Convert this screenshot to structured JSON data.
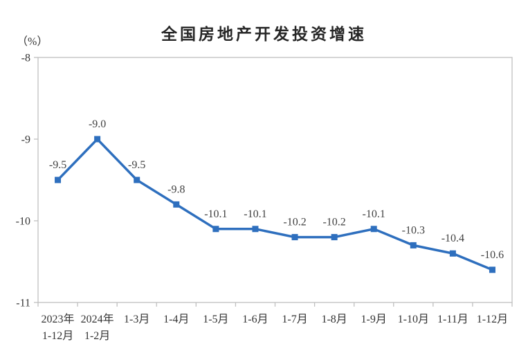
{
  "chart_data": {
    "type": "line",
    "title": "全国房地产开发投资增速",
    "unit_label": "（%）",
    "categories": [
      "2023年\n1-12月",
      "2024年\n1-2月",
      "1-3月",
      "1-4月",
      "1-5月",
      "1-6月",
      "1-7月",
      "1-8月",
      "1-9月",
      "1-10月",
      "1-11月",
      "1-12月"
    ],
    "series": [
      {
        "name": "全国房地产开发投资增速",
        "values": [
          -9.5,
          -9.0,
          -9.5,
          -9.8,
          -10.1,
          -10.1,
          -10.2,
          -10.2,
          -10.1,
          -10.3,
          -10.4,
          -10.6
        ],
        "point_labels": [
          "-9.5",
          "-9.0",
          "-9.5",
          "-9.8",
          "-10.1",
          "-10.1",
          "-10.2",
          "-10.2",
          "-10.1",
          "-10.3",
          "-10.4",
          "-10.6"
        ]
      }
    ],
    "yticks": [
      -8,
      -9,
      -10,
      -11
    ],
    "ytick_labels": [
      "-8",
      "-9",
      "-10",
      "-11"
    ],
    "ylim": [
      -11,
      -8
    ],
    "xlabel": "",
    "ylabel": "（%）",
    "grid": false,
    "legend": "none",
    "colors": {
      "line": "#2E6FBE",
      "marker": "#2E6FBE",
      "axis": "#BFBFBF",
      "data_label": "#404040",
      "axis_text": "#333333",
      "title_text": "#262626"
    }
  }
}
